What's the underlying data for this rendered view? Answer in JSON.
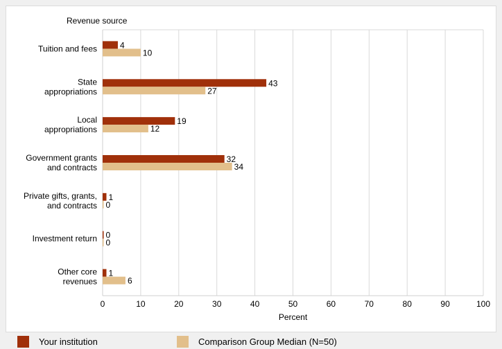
{
  "chart_data": {
    "type": "bar",
    "orientation": "horizontal",
    "title": "",
    "category_axis_label": "Revenue source",
    "xlabel": "Percent",
    "xlim": [
      0,
      100
    ],
    "xticks": [
      "0",
      "10",
      "20",
      "30",
      "40",
      "50",
      "60",
      "70",
      "80",
      "90",
      "100"
    ],
    "grid": true,
    "legend_position": "bottom",
    "categories": [
      [
        "Tuition and fees"
      ],
      [
        "State",
        "appropriations"
      ],
      [
        "Local",
        "appropriations"
      ],
      [
        "Government grants",
        "and contracts"
      ],
      [
        "Private gifts, grants,",
        "and contracts"
      ],
      [
        "Investment return"
      ],
      [
        "Other core",
        "revenues"
      ]
    ],
    "series": [
      {
        "name": "Your institution",
        "color": "#a0300a",
        "values": [
          4,
          43,
          19,
          32,
          1,
          0,
          1
        ],
        "labels": [
          "4",
          "43",
          "19",
          "32",
          "1",
          "0",
          "1"
        ]
      },
      {
        "name": "Comparison Group Median (N=50)",
        "color": "#e2bf8b",
        "values": [
          10,
          27,
          12,
          34,
          0,
          0,
          6
        ],
        "labels": [
          "10",
          "27",
          "12",
          "34",
          "0",
          "0",
          "6"
        ]
      }
    ]
  }
}
